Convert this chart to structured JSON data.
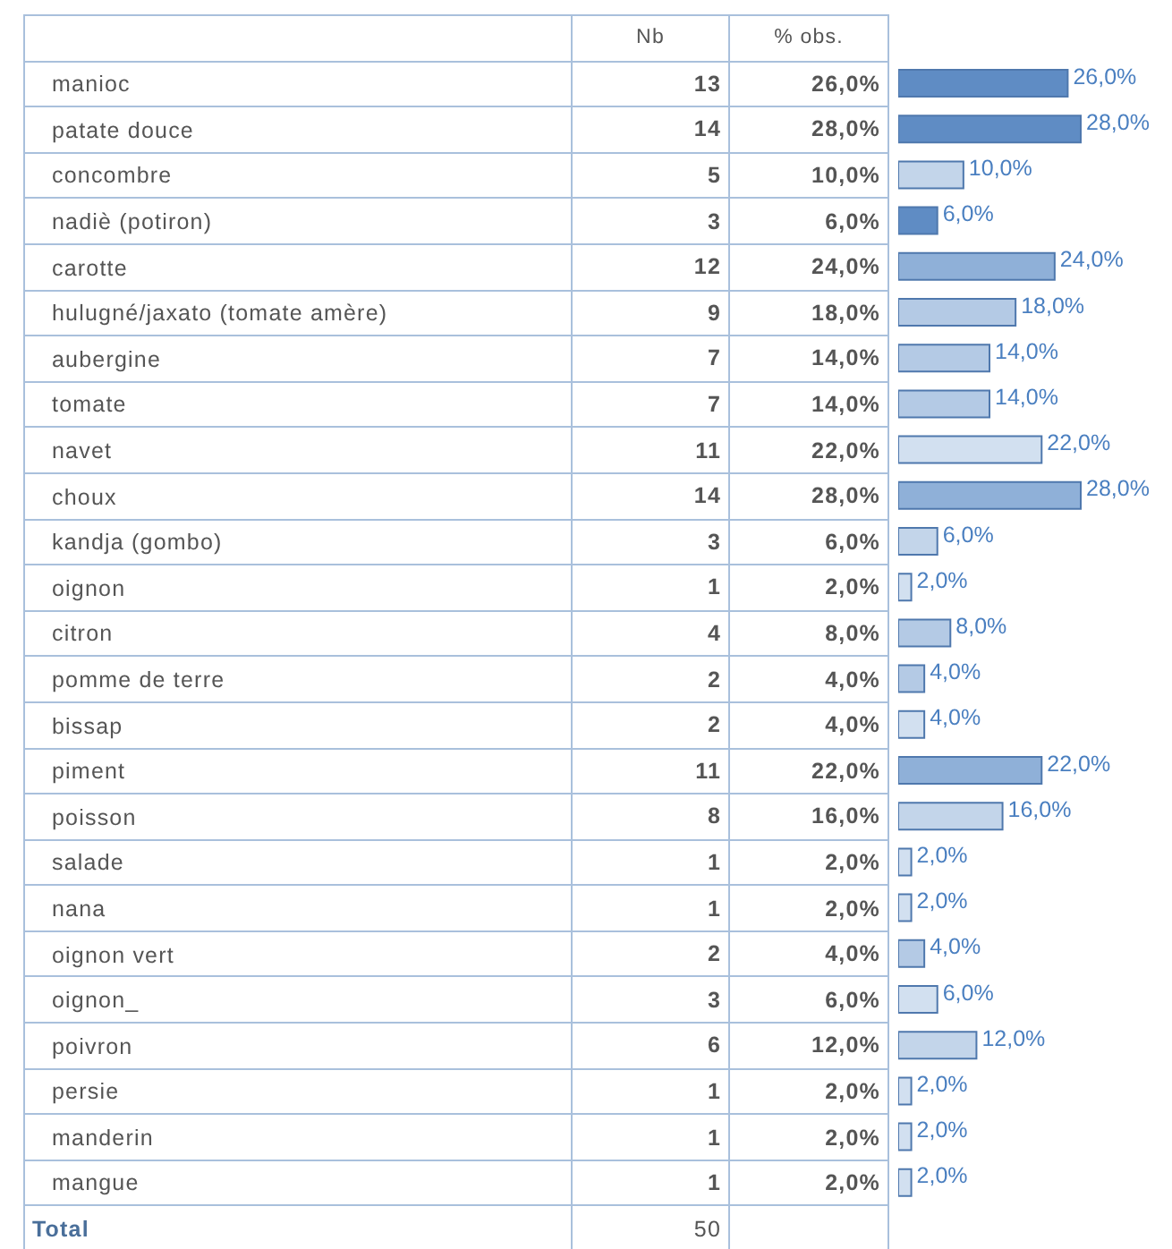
{
  "chart_data": {
    "type": "bar",
    "orientation": "horizontal",
    "categories": [
      "manioc",
      "patate douce",
      "concombre",
      "nadiè (potiron)",
      "carotte",
      "hulugné/jaxato (tomate amère)",
      "aubergine",
      "tomate",
      "navet",
      "choux",
      "kandja (gombo)",
      "oignon",
      "citron",
      "pomme de terre",
      "bissap",
      "piment",
      "poisson",
      "salade",
      "nana",
      "oignon vert",
      "oignon_",
      "poivron",
      "persie",
      "manderin",
      "mangue"
    ],
    "series": [
      {
        "name": "% obs.",
        "values": [
          26,
          28,
          10,
          6,
          24,
          18,
          14,
          14,
          22,
          28,
          6,
          2,
          8,
          4,
          4,
          22,
          16,
          2,
          2,
          4,
          6,
          12,
          2,
          2,
          2
        ],
        "value_labels": [
          "26,0%",
          "28,0%",
          "10,0%",
          "6,0%",
          "24,0%",
          "18,0%",
          "14,0%",
          "14,0%",
          "22,0%",
          "28,0%",
          "6,0%",
          "2,0%",
          "8,0%",
          "4,0%",
          "4,0%",
          "22,0%",
          "16,0%",
          "2,0%",
          "2,0%",
          "4,0%",
          "6,0%",
          "12,0%",
          "2,0%",
          "2,0%",
          "2,0%"
        ],
        "colors": [
          "#5f8cc4",
          "#5f8cc4",
          "#c3d5ea",
          "#5f8cc4",
          "#8fb0d8",
          "#b4cae5",
          "#b4cae5",
          "#b4cae5",
          "#d2e0f0",
          "#8fb0d8",
          "#c3d5ea",
          "#d2e0f0",
          "#b4cae5",
          "#b4cae5",
          "#d2e0f0",
          "#8fb0d8",
          "#c3d5ea",
          "#d2e0f0",
          "#d2e0f0",
          "#b4cae5",
          "#d2e0f0",
          "#c3d5ea",
          "#d2e0f0",
          "#d2e0f0",
          "#d2e0f0"
        ]
      }
    ],
    "annotations": [
      "Nb",
      "13",
      "14",
      "5",
      "3",
      "12",
      "9",
      "7",
      "7",
      "11",
      "14",
      "3",
      "1",
      "4",
      "2",
      "2",
      "11",
      "8",
      "1",
      "1",
      "2",
      "3",
      "6",
      "1",
      "1",
      "1",
      "Total",
      "50"
    ]
  }
}
